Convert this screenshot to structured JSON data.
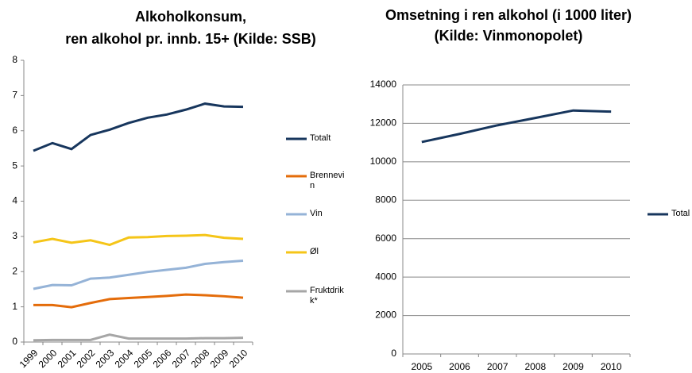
{
  "chart_data": [
    {
      "type": "line",
      "title": [
        "Alkoholkonsum,",
        "ren alkohol pr. innb. 15+  (Kilde: SSB)"
      ],
      "categories": [
        "1999",
        "2000",
        "2001",
        "2002",
        "2003",
        "2004",
        "2005",
        "2006",
        "2007",
        "2008",
        "2009",
        "2010"
      ],
      "series": [
        {
          "name": "Totalt",
          "color": "#17365d",
          "values": [
            5.43,
            5.65,
            5.48,
            5.88,
            6.03,
            6.22,
            6.37,
            6.46,
            6.6,
            6.77,
            6.69,
            6.68
          ]
        },
        {
          "name": "Brennevin",
          "color": "#e46c0a",
          "values": [
            1.05,
            1.05,
            0.99,
            1.11,
            1.22,
            1.25,
            1.28,
            1.31,
            1.35,
            1.33,
            1.3,
            1.26
          ]
        },
        {
          "name": "Vin",
          "color": "#95b3d7",
          "values": [
            1.51,
            1.62,
            1.61,
            1.8,
            1.83,
            1.91,
            1.99,
            2.05,
            2.11,
            2.22,
            2.27,
            2.31
          ]
        },
        {
          "name": "Øl",
          "color": "#f5c518",
          "values": [
            2.83,
            2.93,
            2.82,
            2.89,
            2.76,
            2.97,
            2.98,
            3.01,
            3.02,
            3.04,
            2.96,
            2.93
          ]
        },
        {
          "name": "Fruktdrikk*",
          "color": "#a6a6a6",
          "values": [
            0.05,
            0.06,
            0.06,
            0.06,
            0.21,
            0.1,
            0.1,
            0.1,
            0.1,
            0.11,
            0.11,
            0.12
          ]
        }
      ],
      "ylim": [
        0,
        8
      ],
      "yticks": [
        0,
        1,
        2,
        3,
        4,
        5,
        6,
        7,
        8
      ],
      "grid": false
    },
    {
      "type": "line",
      "title": [
        "Omsetning i ren alkohol (i 1000 liter)",
        "(Kilde: Vinmonopolet)"
      ],
      "categories": [
        "2005",
        "2006",
        "2007",
        "2008",
        "2009",
        "2010"
      ],
      "series": [
        {
          "name": "Total",
          "color": "#17365d",
          "values": [
            11030,
            11450,
            11900,
            12280,
            12670,
            12610
          ]
        }
      ],
      "ylim": [
        0,
        14000
      ],
      "yticks": [
        0,
        2000,
        4000,
        6000,
        8000,
        10000,
        12000,
        14000
      ],
      "grid": true
    }
  ]
}
